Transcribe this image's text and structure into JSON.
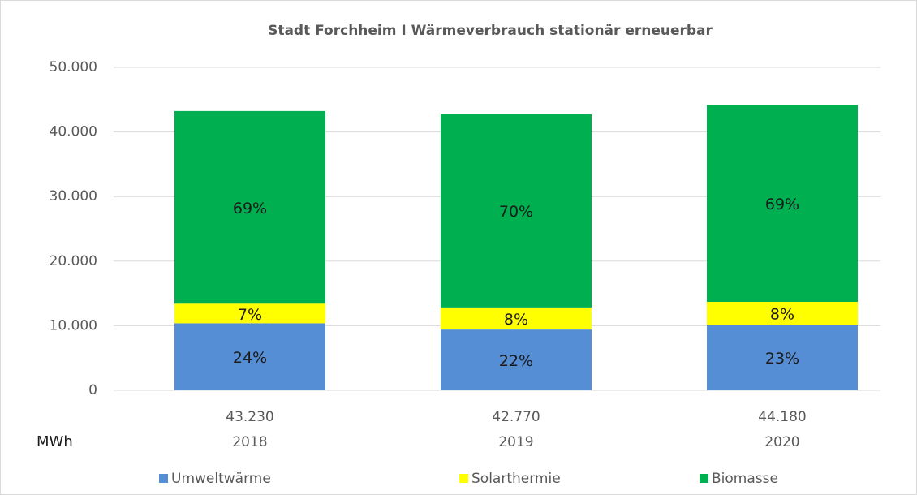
{
  "chart_data": {
    "type": "stacked_bar",
    "title": "Stadt Forchheim  I  Wärmeverbrauch stationär  erneuerbar",
    "y_label": "MWh",
    "categories": [
      "2018",
      "2019",
      "2020"
    ],
    "totals": [
      {
        "value": 43230,
        "label": "43.230"
      },
      {
        "value": 42770,
        "label": "42.770"
      },
      {
        "value": 44180,
        "label": "44.180"
      }
    ],
    "series": [
      {
        "name": "Umweltwärme",
        "color": "#558ed5",
        "values": [
          10380,
          9410,
          10160
        ],
        "share_labels": [
          "24%",
          "22%",
          "23%"
        ]
      },
      {
        "name": "Solarthermie",
        "color": "#ffff00",
        "values": [
          3030,
          3420,
          3530
        ],
        "share_labels": [
          "7%",
          "8%",
          "8%"
        ]
      },
      {
        "name": "Biomasse",
        "color": "#00b050",
        "values": [
          29820,
          29940,
          30490
        ],
        "share_labels": [
          "69%",
          "70%",
          "69%"
        ]
      }
    ],
    "ylim": [
      0,
      50000
    ],
    "yticks": [
      0,
      {
        "value": 10000,
        "label": "10.000"
      },
      {
        "value": 20000,
        "label": "20.000"
      },
      {
        "value": 30000,
        "label": "30.000"
      },
      {
        "value": 40000,
        "label": "40.000"
      },
      {
        "value": 50000,
        "label": "50.000"
      }
    ],
    "grid": true,
    "legend": "bottom"
  }
}
